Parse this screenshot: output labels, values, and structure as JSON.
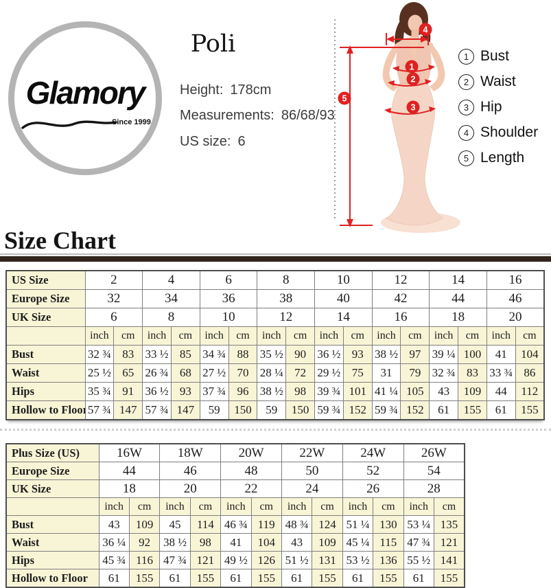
{
  "brand": {
    "name": "Glamory",
    "since": "Since 1999"
  },
  "product": {
    "name": "Poli",
    "height_label": "Height:",
    "height_value": "178cm",
    "measurements_label": "Measurements:",
    "measurements_value": "86/68/93",
    "us_size_label": "US size:",
    "us_size_value": "6"
  },
  "legend": {
    "items": [
      {
        "num": "1",
        "label": "Bust"
      },
      {
        "num": "2",
        "label": "Waist"
      },
      {
        "num": "3",
        "label": "Hip"
      },
      {
        "num": "4",
        "label": "Shoulder"
      },
      {
        "num": "5",
        "label": "Length"
      }
    ]
  },
  "figure": {
    "markers": {
      "bust": "1",
      "waist": "2",
      "hip": "3",
      "shoulder": "4",
      "length": "5"
    }
  },
  "section": {
    "title": "Size Chart"
  },
  "size_chart": {
    "size_rows": [
      {
        "label": "US Size",
        "values": [
          "2",
          "4",
          "6",
          "8",
          "10",
          "12",
          "14",
          "16"
        ]
      },
      {
        "label": "Europe Size",
        "values": [
          "32",
          "34",
          "36",
          "38",
          "40",
          "42",
          "44",
          "46"
        ]
      },
      {
        "label": "UK Size",
        "values": [
          "6",
          "8",
          "10",
          "12",
          "14",
          "16",
          "18",
          "20"
        ]
      }
    ],
    "units": {
      "inch": "inch",
      "cm": "cm"
    },
    "data_rows": [
      {
        "label": "Bust",
        "inch": [
          "32 ¾",
          "33 ½",
          "34 ¾",
          "35 ½",
          "36 ½",
          "38 ½",
          "39 ¼",
          "41"
        ],
        "cm": [
          "83",
          "85",
          "88",
          "90",
          "93",
          "97",
          "100",
          "104"
        ]
      },
      {
        "label": "Waist",
        "inch": [
          "25 ½",
          "26 ¾",
          "27 ½",
          "28 ¼",
          "29 ½",
          "31",
          "32 ¾",
          "33 ¾"
        ],
        "cm": [
          "65",
          "68",
          "70",
          "72",
          "75",
          "79",
          "83",
          "86"
        ]
      },
      {
        "label": "Hips",
        "inch": [
          "35 ¾",
          "36 ½",
          "37 ¾",
          "38 ½",
          "39 ¾",
          "41 ¼",
          "43",
          "44"
        ],
        "cm": [
          "91",
          "93",
          "96",
          "98",
          "101",
          "105",
          "109",
          "112"
        ]
      },
      {
        "label": "Hollow to Floor",
        "inch": [
          "57 ¾",
          "57 ¾",
          "59",
          "59",
          "59 ¾",
          "59 ¾",
          "61",
          "61"
        ],
        "cm": [
          "147",
          "147",
          "150",
          "150",
          "152",
          "152",
          "155",
          "155"
        ]
      }
    ]
  },
  "plus_chart": {
    "size_rows": [
      {
        "label": "Plus Size (US)",
        "values": [
          "16W",
          "18W",
          "20W",
          "22W",
          "24W",
          "26W"
        ]
      },
      {
        "label": "Europe Size",
        "values": [
          "44",
          "46",
          "48",
          "50",
          "52",
          "54"
        ]
      },
      {
        "label": "UK Size",
        "values": [
          "18",
          "20",
          "22",
          "24",
          "26",
          "28"
        ]
      }
    ],
    "units": {
      "inch": "inch",
      "cm": "cm"
    },
    "data_rows": [
      {
        "label": "Bust",
        "inch": [
          "43",
          "45",
          "46 ¾",
          "48 ¾",
          "51 ¼",
          "53 ¼"
        ],
        "cm": [
          "109",
          "114",
          "119",
          "124",
          "130",
          "135"
        ]
      },
      {
        "label": "Waist",
        "inch": [
          "36 ¼",
          "38 ½",
          "41",
          "43",
          "45 ¼",
          "47 ¾"
        ],
        "cm": [
          "92",
          "98",
          "104",
          "109",
          "115",
          "121"
        ]
      },
      {
        "label": "Hips",
        "inch": [
          "45 ¾",
          "47 ¾",
          "49 ½",
          "51 ½",
          "53 ½",
          "55 ½"
        ],
        "cm": [
          "116",
          "121",
          "126",
          "131",
          "136",
          "141"
        ]
      },
      {
        "label": "Hollow to Floor",
        "inch": [
          "61",
          "61",
          "61",
          "61",
          "61",
          "61"
        ],
        "cm": [
          "155",
          "155",
          "155",
          "155",
          "155",
          "155"
        ]
      }
    ]
  },
  "colors": {
    "accent_red": "#e02121",
    "table_header_bg": "#f8f5d7",
    "rule_bar": "#33241e"
  }
}
